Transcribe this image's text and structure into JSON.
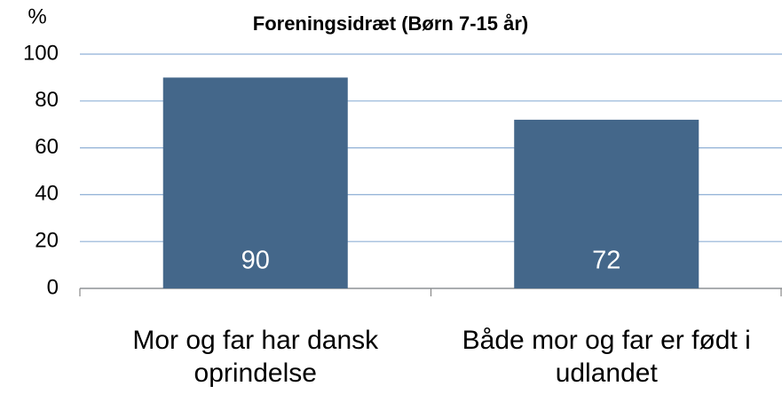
{
  "chart_data": {
    "type": "bar",
    "title": "Foreningsidræt (Børn 7-15 år)",
    "y_label": "%",
    "categories": [
      "Mor og far har dansk oprindelse",
      "Både mor og far er født i udlandet"
    ],
    "values": [
      90,
      72
    ],
    "color": "#44678a",
    "ylim": [
      0,
      100
    ],
    "yticks": [
      0,
      20,
      40,
      60,
      80,
      100
    ],
    "grid": true
  }
}
